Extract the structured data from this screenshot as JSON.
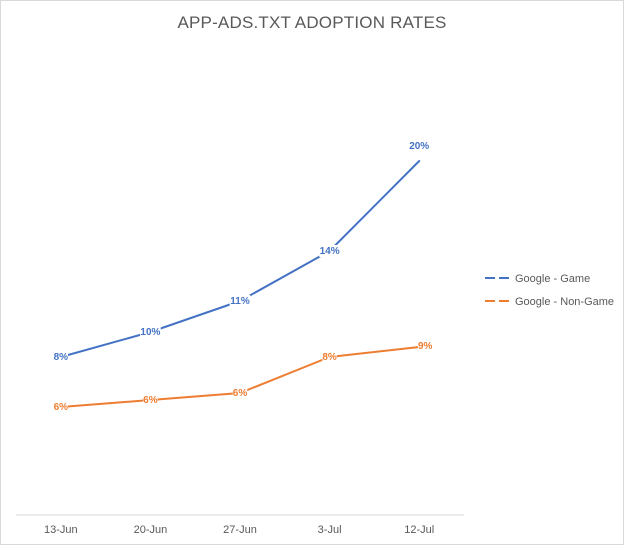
{
  "chart_data": {
    "type": "line",
    "title": "APP-ADS.TXT ADOPTION RATES",
    "categories": [
      "13-Jun",
      "20-Jun",
      "27-Jun",
      "3-Jul",
      "12-Jul"
    ],
    "series": [
      {
        "name": "Google - Game",
        "values": [
          8,
          10,
          11,
          14,
          20
        ],
        "labels": [
          "8%",
          "10%",
          "11%",
          "14%",
          "20%"
        ],
        "color": "#4472c4"
      },
      {
        "name": "Google - Non-Game",
        "values": [
          6,
          6,
          6,
          8,
          9
        ],
        "labels": [
          "6%",
          "6%",
          "6%",
          "8%",
          "9%"
        ],
        "color": "#ed7d31"
      }
    ],
    "legend": "right",
    "grid": false,
    "xlabel": "",
    "ylabel": ""
  }
}
